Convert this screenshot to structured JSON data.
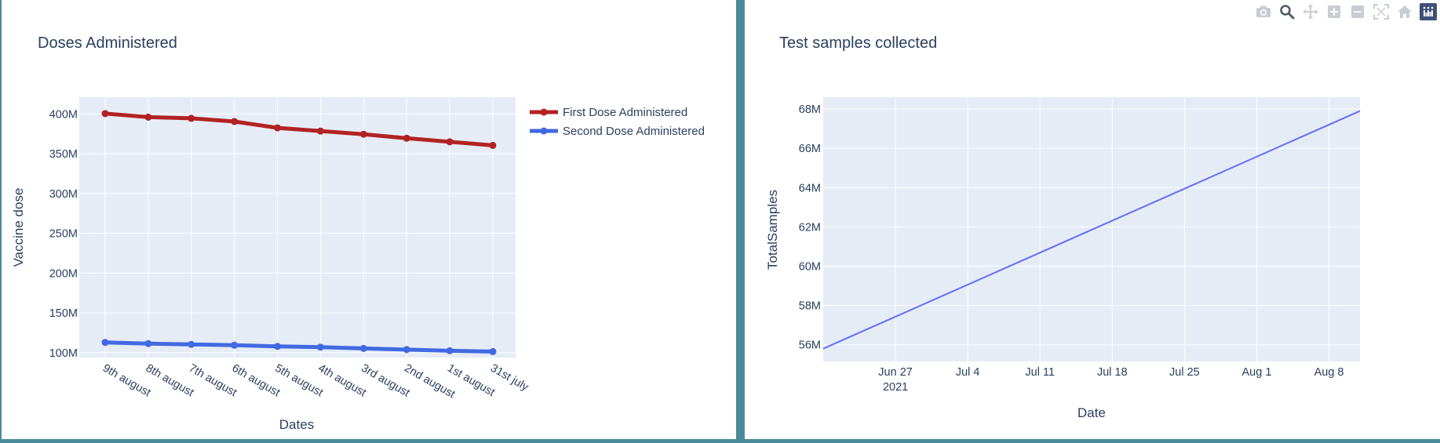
{
  "chart_data": [
    {
      "type": "line",
      "title": "Doses Administered",
      "xlabel": "Dates",
      "ylabel": "Vaccine dose",
      "categories": [
        "9th august",
        "8th august",
        "7th august",
        "6th august",
        "5th august",
        "4th august",
        "3rd august",
        "2nd august",
        "1st august",
        "31st july"
      ],
      "series": [
        {
          "name": "First Dose Administered",
          "color": "#b22222",
          "values": [
            400.5,
            396,
            394.5,
            390.5,
            382.5,
            378.5,
            374.5,
            369.5,
            365,
            360.5
          ]
        },
        {
          "name": "Second Dose Administered",
          "color": "#4169e1",
          "values": [
            113,
            111.5,
            110.5,
            109.5,
            108,
            107,
            105.5,
            104,
            102.5,
            101.5
          ]
        }
      ],
      "ylim": [
        94,
        421
      ],
      "yticks": [
        100,
        150,
        200,
        250,
        300,
        350,
        400
      ],
      "ytick_labels": [
        "100M",
        "150M",
        "200M",
        "250M",
        "300M",
        "350M",
        "400M"
      ],
      "legend": "right-top",
      "grid": true
    },
    {
      "type": "line",
      "title": "Test samples collected",
      "xlabel": "Date",
      "ylabel": "TotalSamples",
      "series": [
        {
          "name": "",
          "color": "#636efa",
          "x": [
            "2021-06-20",
            "2021-08-11"
          ],
          "values": [
            55.8,
            67.9
          ]
        }
      ],
      "xlim": [
        "2021-06-20",
        "2021-08-11"
      ],
      "xticks": [
        "2021-06-27",
        "2021-07-04",
        "2021-07-11",
        "2021-07-18",
        "2021-07-25",
        "2021-08-01",
        "2021-08-08"
      ],
      "xtick_labels": [
        "Jun 27",
        "Jul 4",
        "Jul 11",
        "Jul 18",
        "Jul 25",
        "Aug 1",
        "Aug 8"
      ],
      "xtick_year": "2021",
      "ylim": [
        55.15,
        68.6
      ],
      "yticks": [
        56,
        58,
        60,
        62,
        64,
        66,
        68
      ],
      "ytick_labels": [
        "56M",
        "58M",
        "60M",
        "62M",
        "64M",
        "66M",
        "68M"
      ],
      "grid": true
    }
  ],
  "modebar": {
    "buttons": [
      "camera-icon",
      "zoom-icon",
      "pan-icon",
      "zoom-in-icon",
      "zoom-out-icon",
      "autoscale-icon",
      "home-icon"
    ],
    "active": "zoom-icon"
  }
}
